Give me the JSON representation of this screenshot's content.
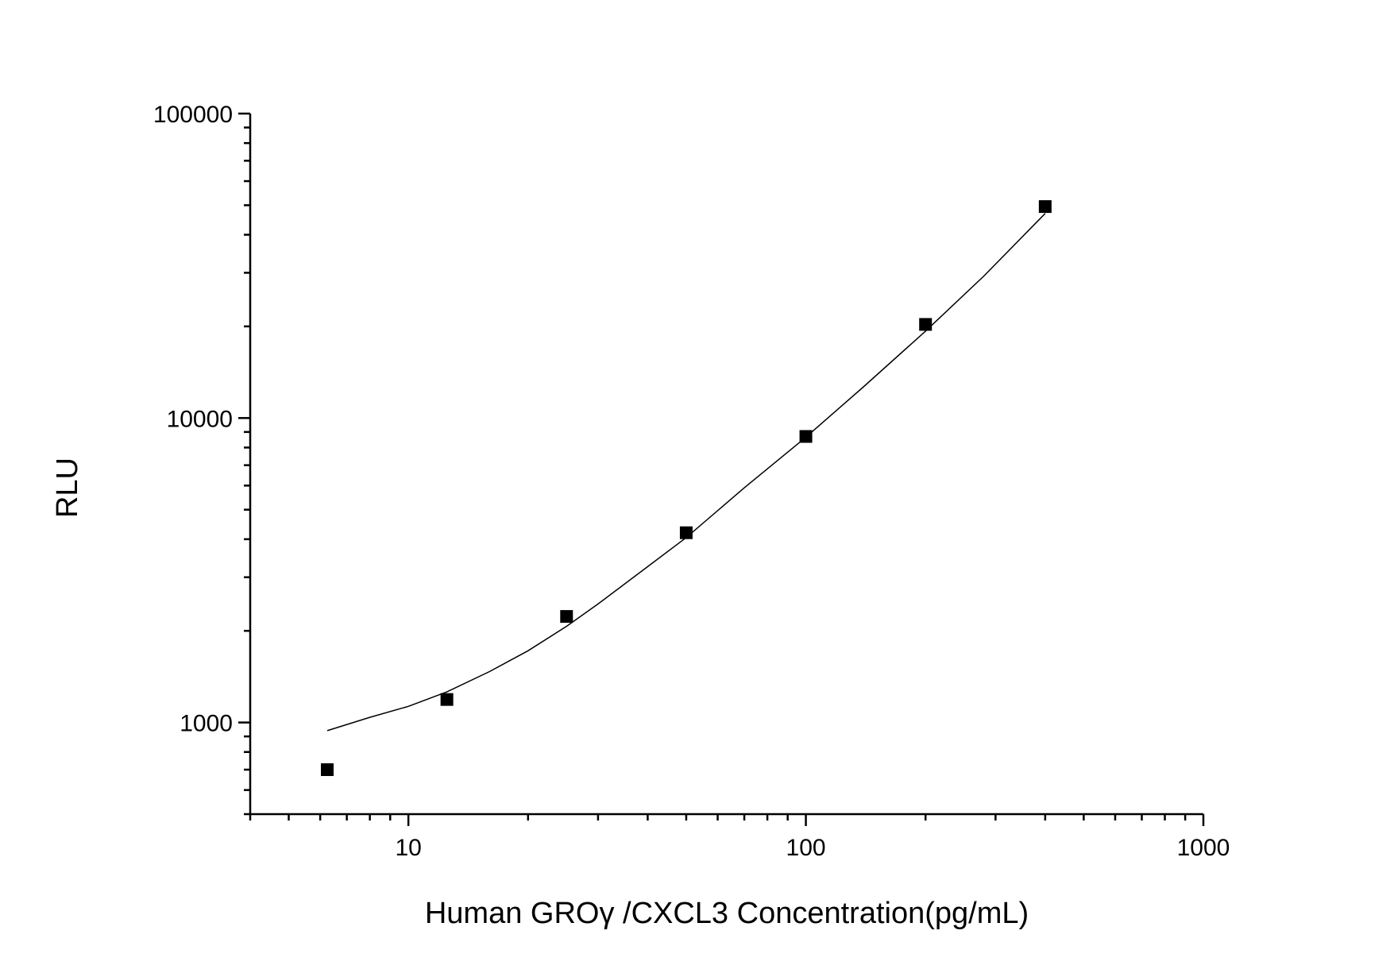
{
  "chart_data": {
    "type": "scatter",
    "xlabel": "Human GROγ  /CXCL3 Concentration(pg/mL)",
    "ylabel": "RLU",
    "xscale": "log",
    "yscale": "log",
    "xlim": [
      4,
      1000
    ],
    "ylim": [
      500,
      100000
    ],
    "x_ticks": [
      10,
      100,
      1000
    ],
    "y_ticks": [
      1000,
      10000,
      100000
    ],
    "x_tick_labels": [
      "10",
      "100",
      "1000"
    ],
    "y_tick_labels": [
      "1000",
      "10000",
      "100000"
    ],
    "grid": false,
    "legend": "none",
    "series": [
      {
        "marker": "square",
        "x": [
          6.25,
          12.5,
          25,
          50,
          100,
          200,
          400
        ],
        "y": [
          700,
          1190,
          2230,
          4200,
          8700,
          20300,
          49500
        ]
      }
    ],
    "fit_curve": {
      "x": [
        6.25,
        8,
        10,
        12.5,
        16,
        20,
        25,
        30,
        40,
        50,
        70,
        100,
        140,
        200,
        280,
        400
      ],
      "y": [
        940,
        1040,
        1130,
        1260,
        1470,
        1720,
        2070,
        2450,
        3250,
        4050,
        5900,
        8650,
        12700,
        19300,
        29200,
        47000
      ]
    }
  }
}
